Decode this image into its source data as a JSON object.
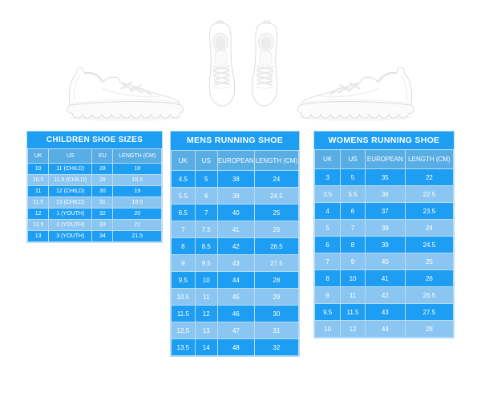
{
  "page": {
    "background": "#ffffff"
  },
  "colors": {
    "title_bar": "#1d9ef3",
    "header_row": "#58ade5",
    "row_dark": "#1d9ef3",
    "row_light": "#8ac6f1",
    "grid_line": "#b6dcf7",
    "table_text": "#ffffff",
    "shoe_outline": "#d9d9d9"
  },
  "photos": {
    "left": "white running sneaker, side view, toe pointing right",
    "center": "pair of white running sneakers, top view",
    "right": "white running sneaker, side view, toe pointing left"
  },
  "chart_data": [
    {
      "type": "table",
      "title": "CHILDREN SHOE SIZES",
      "columns": [
        "UK",
        "US",
        "EU",
        "LENGTH (CM)"
      ],
      "rows": [
        [
          "10",
          "11 (CHILD)",
          "28",
          "18"
        ],
        [
          "10.5",
          "11.5 (CHILD)",
          "29",
          "18.5"
        ],
        [
          "11",
          "12 (CHILD)",
          "30",
          "19"
        ],
        [
          "11.5",
          "13 (CHILD)",
          "31",
          "19.5"
        ],
        [
          "12",
          "1 (YOUTH)",
          "32",
          "20"
        ],
        [
          "12.5",
          "2 (YOUTH)",
          "33",
          "21"
        ],
        [
          "13",
          "3 (YOUTH)",
          "34",
          "21.5"
        ]
      ]
    },
    {
      "type": "table",
      "title": "MENS RUNNING SHOE",
      "columns": [
        "UK",
        "US",
        "EUROPEAN",
        "LENGTH (CM)"
      ],
      "rows": [
        [
          "4.5",
          "5",
          "38",
          "24"
        ],
        [
          "5.5",
          "6",
          "39",
          "24.5"
        ],
        [
          "6.5",
          "7",
          "40",
          "25"
        ],
        [
          "7",
          "7.5",
          "41",
          "26"
        ],
        [
          "8",
          "8.5",
          "42",
          "26.5"
        ],
        [
          "9",
          "9.5",
          "43",
          "27.5"
        ],
        [
          "9.5",
          "10",
          "44",
          "28"
        ],
        [
          "10.5",
          "11",
          "45",
          "29"
        ],
        [
          "11.5",
          "12",
          "46",
          "30"
        ],
        [
          "12.5",
          "13",
          "47",
          "31"
        ],
        [
          "13.5",
          "14",
          "48",
          "32"
        ]
      ]
    },
    {
      "type": "table",
      "title": "WOMENS RUNNING SHOE",
      "columns": [
        "UK",
        "US",
        "EUROPEAN",
        "LENGTH (CM)"
      ],
      "rows": [
        [
          "3",
          "5",
          "35",
          "22"
        ],
        [
          "3.5",
          "5.5",
          "36",
          "22.5"
        ],
        [
          "4",
          "6",
          "37",
          "23.5"
        ],
        [
          "5",
          "7",
          "38",
          "24"
        ],
        [
          "6",
          "8",
          "39",
          "24.5"
        ],
        [
          "7",
          "9",
          "40",
          "25"
        ],
        [
          "8",
          "10",
          "41",
          "26"
        ],
        [
          "9",
          "11",
          "42",
          "26.5"
        ],
        [
          "9.5",
          "11.5",
          "43",
          "27.5"
        ],
        [
          "10",
          "12",
          "44",
          "28"
        ]
      ]
    }
  ]
}
